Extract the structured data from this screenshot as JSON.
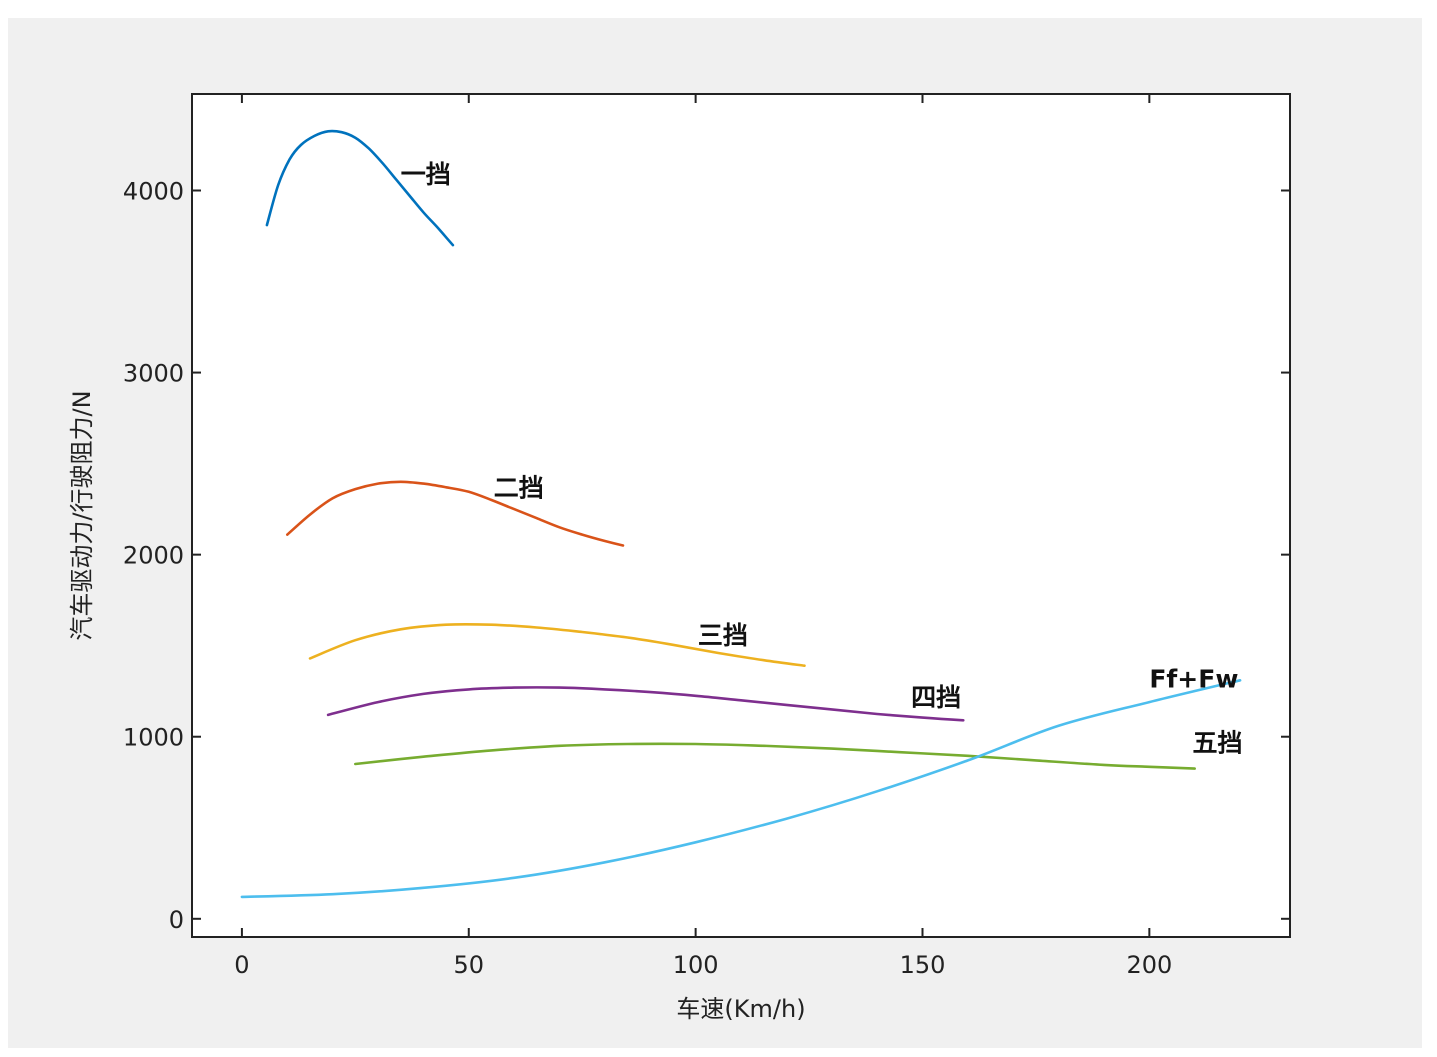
{
  "chart_data": {
    "type": "line",
    "title": "",
    "xlabel": "车速(Km/h)",
    "ylabel": "汽车驱动力/行驶阻力/N",
    "xlim": [
      -11,
      231
    ],
    "ylim": [
      -100,
      4530
    ],
    "xticks": [
      0,
      50,
      100,
      150,
      200
    ],
    "yticks": [
      0,
      1000,
      2000,
      3000,
      4000
    ],
    "grid": false,
    "legend": "none",
    "series": [
      {
        "name": "一挡",
        "color": "#0072bd",
        "points": [
          [
            5.5,
            3810
          ],
          [
            8,
            4030
          ],
          [
            10.5,
            4170
          ],
          [
            13,
            4250
          ],
          [
            16,
            4300
          ],
          [
            19,
            4325
          ],
          [
            22,
            4320
          ],
          [
            25,
            4290
          ],
          [
            28,
            4230
          ],
          [
            31,
            4150
          ],
          [
            34,
            4060
          ],
          [
            37,
            3970
          ],
          [
            40,
            3880
          ],
          [
            43,
            3800
          ],
          [
            46.5,
            3700
          ]
        ]
      },
      {
        "name": "二挡",
        "color": "#d95319",
        "points": [
          [
            10,
            2110
          ],
          [
            15,
            2220
          ],
          [
            20,
            2310
          ],
          [
            25,
            2360
          ],
          [
            30,
            2390
          ],
          [
            35,
            2400
          ],
          [
            40,
            2390
          ],
          [
            45,
            2370
          ],
          [
            50,
            2345
          ],
          [
            55,
            2300
          ],
          [
            60,
            2250
          ],
          [
            65,
            2200
          ],
          [
            70,
            2150
          ],
          [
            75,
            2110
          ],
          [
            80,
            2075
          ],
          [
            84,
            2050
          ]
        ]
      },
      {
        "name": "三挡",
        "color": "#edb120",
        "points": [
          [
            15,
            1430
          ],
          [
            25,
            1530
          ],
          [
            35,
            1590
          ],
          [
            45,
            1615
          ],
          [
            55,
            1615
          ],
          [
            65,
            1600
          ],
          [
            75,
            1575
          ],
          [
            85,
            1545
          ],
          [
            95,
            1505
          ],
          [
            105,
            1460
          ],
          [
            115,
            1420
          ],
          [
            124,
            1390
          ]
        ]
      },
      {
        "name": "四挡",
        "color": "#7e2f8e",
        "points": [
          [
            19,
            1120
          ],
          [
            30,
            1190
          ],
          [
            40,
            1235
          ],
          [
            50,
            1260
          ],
          [
            60,
            1270
          ],
          [
            70,
            1270
          ],
          [
            80,
            1260
          ],
          [
            90,
            1245
          ],
          [
            100,
            1225
          ],
          [
            110,
            1200
          ],
          [
            120,
            1175
          ],
          [
            130,
            1150
          ],
          [
            140,
            1125
          ],
          [
            150,
            1105
          ],
          [
            159,
            1090
          ]
        ]
      },
      {
        "name": "五挡",
        "color": "#77ac30",
        "points": [
          [
            25,
            850
          ],
          [
            40,
            890
          ],
          [
            55,
            925
          ],
          [
            70,
            950
          ],
          [
            85,
            960
          ],
          [
            100,
            960
          ],
          [
            115,
            950
          ],
          [
            130,
            935
          ],
          [
            145,
            915
          ],
          [
            160,
            895
          ],
          [
            175,
            870
          ],
          [
            190,
            845
          ],
          [
            200,
            835
          ],
          [
            210,
            825
          ]
        ]
      },
      {
        "name": "Ff+Fw",
        "color": "#4dbeee",
        "points": [
          [
            0,
            120
          ],
          [
            20,
            135
          ],
          [
            40,
            170
          ],
          [
            60,
            225
          ],
          [
            80,
            310
          ],
          [
            100,
            420
          ],
          [
            120,
            550
          ],
          [
            140,
            700
          ],
          [
            160,
            870
          ],
          [
            180,
            1060
          ],
          [
            200,
            1190
          ],
          [
            220,
            1310
          ]
        ]
      }
    ],
    "annotations": [
      {
        "text": "一挡",
        "x": 35,
        "y": 4040
      },
      {
        "text": "二挡",
        "x": 55.5,
        "y": 2320
      },
      {
        "text": "三挡",
        "x": 100.5,
        "y": 1510
      },
      {
        "text": "四挡",
        "x": 147.5,
        "y": 1170
      },
      {
        "text": "Ff+Fw",
        "x": 200,
        "y": 1270
      },
      {
        "text": "五挡",
        "x": 209.5,
        "y": 920
      }
    ]
  }
}
